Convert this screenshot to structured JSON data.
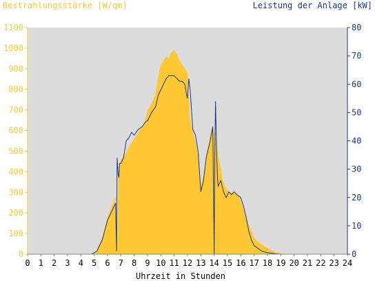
{
  "chart_data": {
    "type": "area",
    "left_axis_title": "Bestrahlungsstärke [W/qm]",
    "right_axis_title": "Leistung der Anlage [kW]",
    "xlabel": "Uhrzeit in Stunden",
    "xlim": [
      0,
      24
    ],
    "ylim_left": [
      0,
      1100
    ],
    "ylim_right": [
      0,
      80
    ],
    "xticks": [
      "0",
      "1",
      "2",
      "3",
      "4",
      "5",
      "6",
      "7",
      "8",
      "9",
      "10",
      "11",
      "12",
      "13",
      "14",
      "15",
      "16",
      "17",
      "18",
      "19",
      "20",
      "21",
      "22",
      "23",
      "24"
    ],
    "yticks_left": [
      "0",
      "100",
      "200",
      "300",
      "400",
      "500",
      "600",
      "700",
      "800",
      "900",
      "1000",
      "1100"
    ],
    "yticks_right": [
      "0",
      "10",
      "20",
      "30",
      "40",
      "50",
      "60",
      "70",
      "80"
    ],
    "colors": {
      "plot_bg": "#dcdcdc",
      "irradiance_fill": "#ffc832",
      "power_line": "#1a3a8a",
      "left_axis": "#ffc832",
      "right_axis": "#1a3a8a"
    },
    "grid": false,
    "series": [
      {
        "name": "Bestrahlungsstärke [W/qm]",
        "axis": "left",
        "x": [
          0,
          4.8,
          5.2,
          5.6,
          6.0,
          6.3,
          6.6,
          6.75,
          6.8,
          6.9,
          7.0,
          7.3,
          7.6,
          8.0,
          8.4,
          8.8,
          9.0,
          9.3,
          9.6,
          9.8,
          10.0,
          10.2,
          10.4,
          10.6,
          10.8,
          11.0,
          11.2,
          11.4,
          11.6,
          11.8,
          12.0,
          12.2,
          12.3,
          12.5,
          12.7,
          12.9,
          13.0,
          13.2,
          13.4,
          13.6,
          13.8,
          14.0,
          14.1,
          14.2,
          14.3,
          14.4,
          14.6,
          14.8,
          15.0,
          15.2,
          15.5,
          15.8,
          16.0,
          16.2,
          16.5,
          16.8,
          17.0,
          17.3,
          17.6,
          18.0,
          18.3,
          18.6,
          19.0,
          19.3,
          19.6,
          24
        ],
        "values": [
          0,
          0,
          20,
          80,
          180,
          230,
          280,
          60,
          390,
          420,
          460,
          480,
          520,
          560,
          600,
          640,
          700,
          730,
          780,
          860,
          920,
          940,
          960,
          950,
          980,
          990,
          970,
          940,
          920,
          900,
          880,
          650,
          620,
          570,
          520,
          430,
          330,
          380,
          480,
          540,
          610,
          590,
          570,
          520,
          480,
          450,
          370,
          330,
          310,
          300,
          300,
          290,
          260,
          220,
          160,
          110,
          80,
          60,
          45,
          30,
          20,
          10,
          5,
          0,
          0,
          0
        ]
      },
      {
        "name": "Leistung der Anlage [kW]",
        "axis": "right",
        "x": [
          0,
          4.8,
          5.2,
          5.6,
          6.0,
          6.3,
          6.6,
          6.68,
          6.72,
          6.8,
          6.85,
          6.9,
          7.0,
          7.2,
          7.4,
          7.6,
          7.8,
          8.0,
          8.3,
          8.6,
          8.9,
          9.0,
          9.3,
          9.6,
          9.8,
          10.0,
          10.2,
          10.4,
          10.6,
          10.8,
          11.0,
          11.2,
          11.4,
          11.6,
          11.8,
          11.9,
          12.0,
          12.1,
          12.2,
          12.4,
          12.6,
          12.8,
          13.0,
          13.2,
          13.4,
          13.7,
          13.9,
          14.0,
          14.05,
          14.1,
          14.2,
          14.25,
          14.3,
          14.5,
          14.7,
          14.9,
          15.1,
          15.3,
          15.5,
          15.7,
          16.0,
          16.2,
          16.4,
          16.6,
          16.8,
          17.0,
          17.3,
          17.6,
          18.0,
          18.5,
          19.0,
          19.5,
          20,
          24
        ],
        "values": [
          0,
          0,
          1,
          5,
          12,
          15,
          18,
          1,
          34,
          28,
          27,
          32,
          32,
          34,
          40,
          41,
          43,
          42,
          44,
          45,
          47,
          47,
          50,
          52,
          56,
          58,
          60,
          62,
          63,
          63,
          63,
          62,
          61,
          61,
          60,
          57,
          55,
          62,
          58,
          44,
          42,
          36,
          22,
          26,
          34,
          40,
          45,
          0,
          35,
          54,
          34,
          27,
          24,
          26,
          22,
          20,
          22,
          21,
          22,
          21,
          20,
          17,
          13,
          8,
          5,
          3,
          2,
          1,
          0.5,
          0.2,
          0,
          0,
          0,
          0
        ]
      }
    ]
  }
}
